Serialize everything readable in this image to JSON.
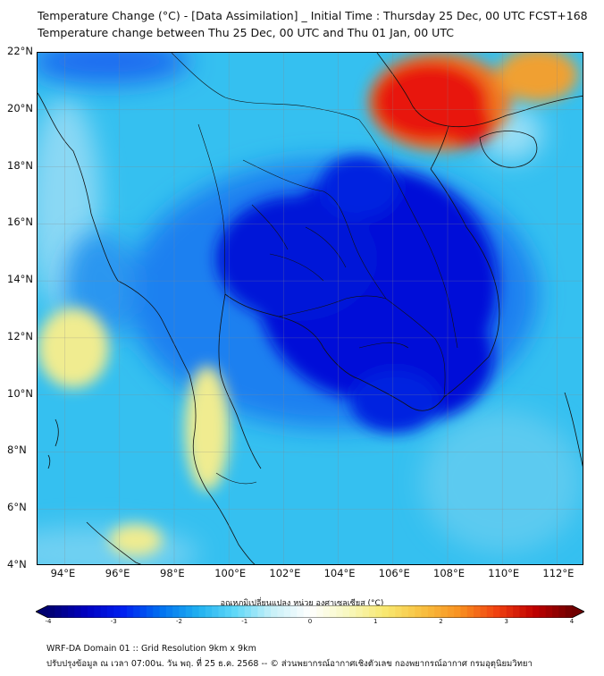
{
  "title_line1": "Temperature Change (°C) - [Data Assimilation] _ Initial Time : Thursday 25 Dec, 00 UTC FCST+168",
  "title_line2": "Temperature change between Thu 25 Dec, 00 UTC and Thu 01 Jan, 00 UTC",
  "map": {
    "lon_range": [
      93,
      113
    ],
    "lat_range": [
      4,
      22
    ],
    "lon_ticks": [
      "94°E",
      "96°E",
      "98°E",
      "100°E",
      "102°E",
      "104°E",
      "106°E",
      "108°E",
      "110°E",
      "112°E"
    ],
    "lat_ticks": [
      "22°N",
      "20°N",
      "18°N",
      "16°N",
      "14°N",
      "12°N",
      "10°N",
      "8°N",
      "6°N",
      "4°N"
    ],
    "background_color": "#35c0f0",
    "features": [
      {
        "name": "strong-cooling-core",
        "color": "#0010d8"
      },
      {
        "name": "strong-warming-south-china",
        "color": "#e81808"
      },
      {
        "name": "mild-warming-andaman",
        "color": "#f0ec90"
      }
    ]
  },
  "colorbar": {
    "title": "อุณหภูมิเปลี่ยนแปลง หน่วย องศาเซลเซียส (°C)",
    "min": -4,
    "max": 4,
    "tick_labels": [
      "-4",
      "-3",
      "-2",
      "-1",
      "0",
      "1",
      "2",
      "3",
      "4"
    ],
    "colors": [
      "#000070",
      "#0000c0",
      "#0020f0",
      "#0070f0",
      "#20b0f0",
      "#60d8f8",
      "#c8f0f8",
      "#ffffff",
      "#f8f8c0",
      "#f8e870",
      "#f8c040",
      "#f89020",
      "#f04010",
      "#c00000",
      "#700000"
    ]
  },
  "footer_line1": "WRF-DA Domain 01 :: Grid Resolution 9km x 9km",
  "footer_line2": "ปรับปรุงข้อมูล ณ เวลา 07:00น. วัน พฤ. ที่ 25 ธ.ค. 2568 -- © ส่วนพยากรณ์อากาศเชิงตัวเลข กองพยากรณ์อากาศ กรมอุตุนิยมวิทยา"
}
